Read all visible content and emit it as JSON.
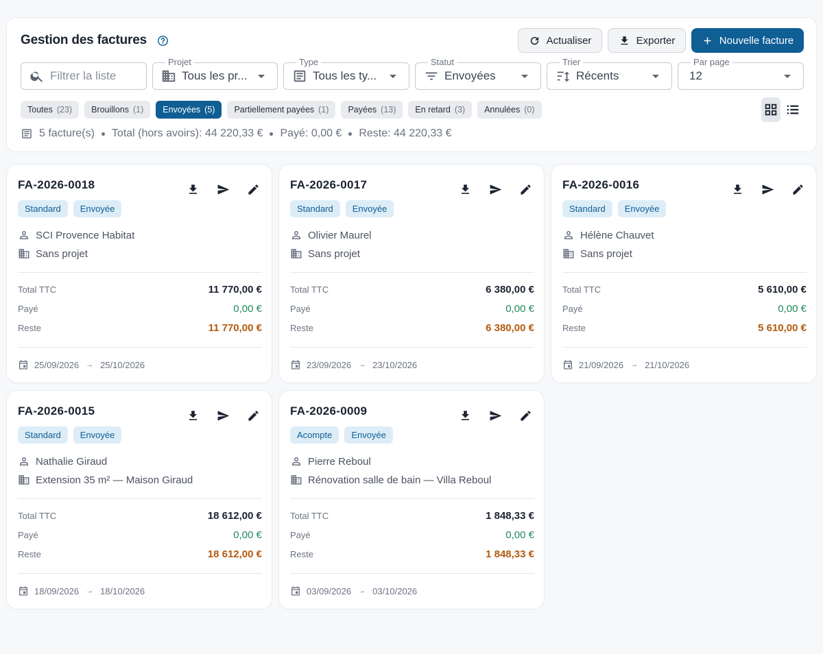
{
  "header": {
    "title": "Gestion des factures",
    "refresh_label": "Actualiser",
    "export_label": "Exporter",
    "new_label": "Nouvelle facture",
    "accent_color": "#0f5e94"
  },
  "filters": {
    "search_placeholder": "Filtrer la liste",
    "project": {
      "label": "Projet",
      "value": "Tous les pr..."
    },
    "type": {
      "label": "Type",
      "value": "Tous les ty..."
    },
    "status": {
      "label": "Statut",
      "value": "Envoyées"
    },
    "sort": {
      "label": "Trier",
      "value": "Récents"
    },
    "per_page": {
      "label": "Par page",
      "value": "12"
    }
  },
  "chips": [
    {
      "label": "Toutes",
      "count": "(23)"
    },
    {
      "label": "Brouillons",
      "count": "(1)"
    },
    {
      "label": "Envoyées",
      "count": "(5)"
    },
    {
      "label": "Partiellement payées",
      "count": "(1)"
    },
    {
      "label": "Payées",
      "count": "(13)"
    },
    {
      "label": "En retard",
      "count": "(3)"
    },
    {
      "label": "Annulées",
      "count": "(0)"
    }
  ],
  "active_chip": "Envoyées",
  "summary": {
    "count": "5 facture(s)",
    "total": "Total (hors avoirs): 44 220,33 €",
    "paid": "Payé: 0,00 €",
    "rest": "Reste: 44 220,33 €"
  },
  "labels": {
    "total": "Total TTC",
    "paid": "Payé",
    "rest": "Reste",
    "arrow": "→"
  },
  "invoices": [
    {
      "number": "FA-2026-0018",
      "type": "Standard",
      "status": "Envoyée",
      "client": "SCI Provence Habitat",
      "project": "Sans projet",
      "total": "11 770,00 €",
      "paid": "0,00 €",
      "rest": "11 770,00 €",
      "date_start": "25/09/2026",
      "date_end": "25/10/2026"
    },
    {
      "number": "FA-2026-0017",
      "type": "Standard",
      "status": "Envoyée",
      "client": "Olivier Maurel",
      "project": "Sans projet",
      "total": "6 380,00 €",
      "paid": "0,00 €",
      "rest": "6 380,00 €",
      "date_start": "23/09/2026",
      "date_end": "23/10/2026"
    },
    {
      "number": "FA-2026-0016",
      "type": "Standard",
      "status": "Envoyée",
      "client": "Hélène Chauvet",
      "project": "Sans projet",
      "total": "5 610,00 €",
      "paid": "0,00 €",
      "rest": "5 610,00 €",
      "date_start": "21/09/2026",
      "date_end": "21/10/2026"
    },
    {
      "number": "FA-2026-0015",
      "type": "Standard",
      "status": "Envoyée",
      "client": "Nathalie Giraud",
      "project": "Extension 35 m² — Maison Giraud",
      "total": "18 612,00 €",
      "paid": "0,00 €",
      "rest": "18 612,00 €",
      "date_start": "18/09/2026",
      "date_end": "18/10/2026"
    },
    {
      "number": "FA-2026-0009",
      "type": "Acompte",
      "status": "Envoyée",
      "client": "Pierre Reboul",
      "project": "Rénovation salle de bain — Villa Reboul",
      "total": "1 848,33 €",
      "paid": "0,00 €",
      "rest": "1 848,33 €",
      "date_start": "03/09/2026",
      "date_end": "03/10/2026"
    }
  ]
}
